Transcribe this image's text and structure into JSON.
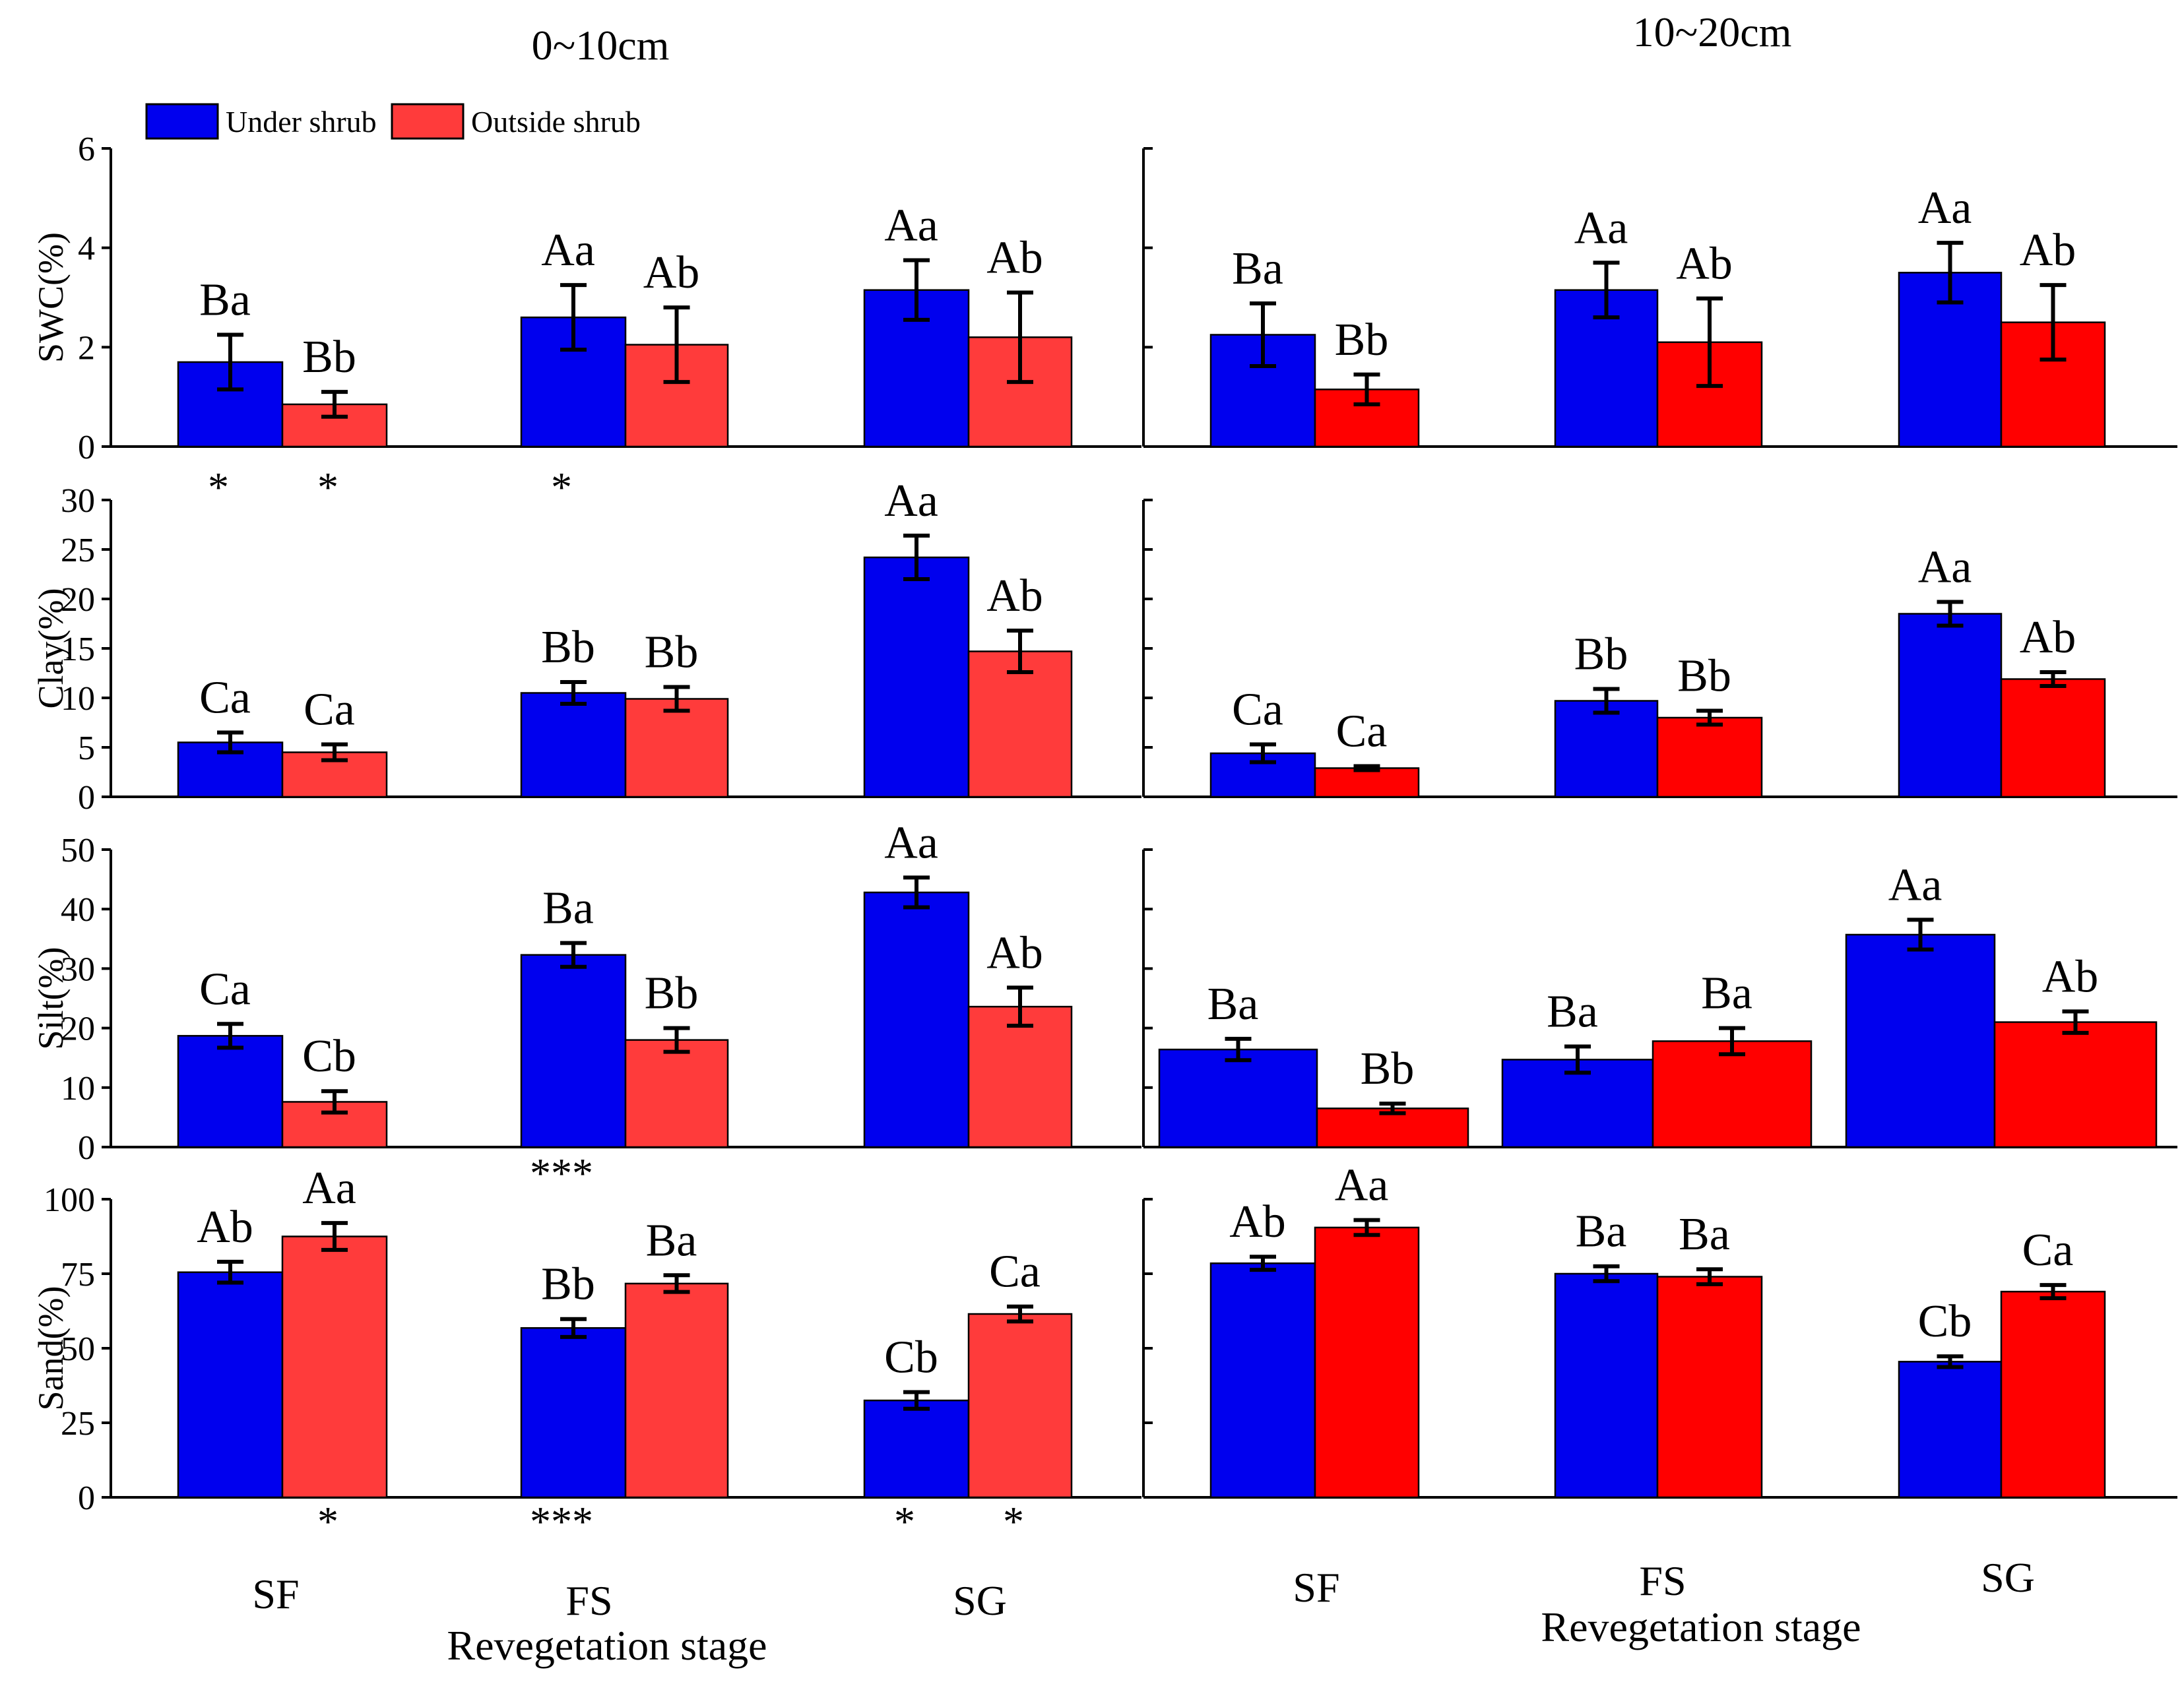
{
  "colors": {
    "under_left": "#0000ee",
    "outside_left": "#ff3b3b",
    "under_right": "#0000ee",
    "outside_right": "#ff0000"
  },
  "titles": {
    "left": "0~10cm",
    "right": "10~20cm"
  },
  "legend": {
    "under": "Under shrub",
    "outside": "Outside shrub"
  },
  "x_axis": {
    "label": "Revegetation stage",
    "categories": [
      "SF",
      "FS",
      "SG"
    ]
  },
  "chart_data": [
    {
      "type": "bar",
      "title": "0~10cm",
      "ylabel": "SWC(%)",
      "ylim": [
        0,
        6
      ],
      "yticks": [
        "0",
        "2",
        "4",
        "6"
      ],
      "categories": [
        "SF",
        "FS",
        "SG"
      ],
      "series": [
        {
          "name": "Under shrub",
          "values": [
            1.7,
            2.6,
            3.15
          ],
          "errors": [
            0.55,
            0.65,
            0.6
          ],
          "letters": [
            "Ba",
            "Aa",
            "Aa"
          ]
        },
        {
          "name": "Outside shrub",
          "values": [
            0.85,
            2.05,
            2.2
          ],
          "errors": [
            0.25,
            0.75,
            0.9
          ],
          "letters": [
            "Bb",
            "Ab",
            "Ab"
          ]
        }
      ],
      "significance": [
        {
          "category": "SF",
          "series": "Under shrub",
          "mark": "*"
        },
        {
          "category": "SF",
          "series": "Outside shrub",
          "mark": "*"
        },
        {
          "category": "FS",
          "series": "Under shrub",
          "mark": "*"
        }
      ]
    },
    {
      "type": "bar",
      "title": "10~20cm",
      "ylabel": "SWC(%)",
      "ylim": [
        0,
        6
      ],
      "yticks": [
        "0",
        "2",
        "4",
        "6"
      ],
      "categories": [
        "SF",
        "FS",
        "SG"
      ],
      "series": [
        {
          "name": "Under shrub",
          "values": [
            2.25,
            3.15,
            3.5
          ],
          "errors": [
            0.63,
            0.55,
            0.6
          ],
          "letters": [
            "Ba",
            "Aa",
            "Aa"
          ]
        },
        {
          "name": "Outside shrub",
          "values": [
            1.15,
            2.1,
            2.5
          ],
          "errors": [
            0.3,
            0.88,
            0.75
          ],
          "letters": [
            "Bb",
            "Ab",
            "Ab"
          ]
        }
      ],
      "significance": []
    },
    {
      "type": "bar",
      "title": "0~10cm",
      "ylabel": "Clay(%)",
      "ylim": [
        0,
        30
      ],
      "yticks": [
        "0",
        "5",
        "10",
        "15",
        "20",
        "25",
        "30"
      ],
      "categories": [
        "SF",
        "FS",
        "SG"
      ],
      "series": [
        {
          "name": "Under shrub",
          "values": [
            5.5,
            10.5,
            24.2
          ],
          "errors": [
            1.0,
            1.1,
            2.2
          ],
          "letters": [
            "Ca",
            "Bb",
            "Aa"
          ]
        },
        {
          "name": "Outside shrub",
          "values": [
            4.5,
            9.9,
            14.7
          ],
          "errors": [
            0.8,
            1.2,
            2.1
          ],
          "letters": [
            "Ca",
            "Bb",
            "Ab"
          ]
        }
      ],
      "significance": []
    },
    {
      "type": "bar",
      "title": "10~20cm",
      "ylabel": "Clay(%)",
      "ylim": [
        0,
        30
      ],
      "yticks": [
        "0",
        "5",
        "10",
        "15",
        "20",
        "25",
        "30"
      ],
      "categories": [
        "SF",
        "FS",
        "SG"
      ],
      "series": [
        {
          "name": "Under shrub",
          "values": [
            4.4,
            9.7,
            18.5
          ],
          "errors": [
            0.9,
            1.2,
            1.2
          ],
          "letters": [
            "Ca",
            "Bb",
            "Aa"
          ]
        },
        {
          "name": "Outside shrub",
          "values": [
            2.9,
            8.0,
            11.9
          ],
          "errors": [
            0.2,
            0.7,
            0.7
          ],
          "letters": [
            "Ca",
            "Bb",
            "Ab"
          ]
        }
      ],
      "significance": []
    },
    {
      "type": "bar",
      "title": "0~10cm",
      "ylabel": "Silt(%)",
      "ylim": [
        0,
        50
      ],
      "yticks": [
        "0",
        "10",
        "20",
        "30",
        "40",
        "50"
      ],
      "categories": [
        "SF",
        "FS",
        "SG"
      ],
      "series": [
        {
          "name": "Under shrub",
          "values": [
            18.7,
            32.3,
            42.8
          ],
          "errors": [
            2.0,
            2.0,
            2.5
          ],
          "letters": [
            "Ca",
            "Ba",
            "Aa"
          ]
        },
        {
          "name": "Outside shrub",
          "values": [
            7.6,
            18.0,
            23.6
          ],
          "errors": [
            1.8,
            2.0,
            3.2
          ],
          "letters": [
            "Cb",
            "Bb",
            "Ab"
          ]
        }
      ],
      "significance": [
        {
          "category": "FS",
          "series": "Under shrub",
          "mark": "***"
        }
      ]
    },
    {
      "type": "bar",
      "title": "10~20cm",
      "ylabel": "Silt(%)",
      "ylim": [
        0,
        50
      ],
      "yticks": [
        "0",
        "10",
        "20",
        "30",
        "40",
        "50"
      ],
      "categories": [
        "SF",
        "FS",
        "SG"
      ],
      "series": [
        {
          "name": "Under shrub",
          "values": [
            16.4,
            14.7,
            35.7
          ],
          "errors": [
            1.8,
            2.2,
            2.5
          ],
          "letters": [
            "Ba",
            "Ba",
            "Aa"
          ]
        },
        {
          "name": "Outside shrub",
          "values": [
            6.5,
            17.8,
            21.0
          ],
          "errors": [
            0.8,
            2.2,
            1.8
          ],
          "letters": [
            "Bb",
            "Ba",
            "Ab"
          ]
        }
      ],
      "significance": []
    },
    {
      "type": "bar",
      "title": "0~10cm",
      "ylabel": "Sand(%)",
      "ylim": [
        0,
        100
      ],
      "yticks": [
        "0",
        "25",
        "50",
        "75",
        "100"
      ],
      "categories": [
        "SF",
        "FS",
        "SG"
      ],
      "series": [
        {
          "name": "Under shrub",
          "values": [
            75.5,
            56.8,
            32.5
          ],
          "errors": [
            3.5,
            3.0,
            2.8
          ],
          "letters": [
            "Ab",
            "Bb",
            "Cb"
          ]
        },
        {
          "name": "Outside shrub",
          "values": [
            87.5,
            71.7,
            61.5
          ],
          "errors": [
            4.5,
            2.8,
            2.5
          ],
          "letters": [
            "Aa",
            "Ba",
            "Ca"
          ]
        }
      ],
      "significance": [
        {
          "category": "SF",
          "series": "Outside shrub",
          "mark": "*"
        },
        {
          "category": "FS",
          "series": "Under shrub",
          "mark": "***"
        },
        {
          "category": "SG",
          "series": "Under shrub",
          "mark": "*"
        },
        {
          "category": "SG",
          "series": "Outside shrub",
          "mark": "*"
        }
      ]
    },
    {
      "type": "bar",
      "title": "10~20cm",
      "ylabel": "Sand(%)",
      "ylim": [
        0,
        100
      ],
      "yticks": [
        "0",
        "25",
        "50",
        "75",
        "100"
      ],
      "categories": [
        "SF",
        "FS",
        "SG"
      ],
      "series": [
        {
          "name": "Under shrub",
          "values": [
            78.5,
            75.0,
            45.5
          ],
          "errors": [
            2.2,
            2.5,
            1.8
          ],
          "letters": [
            "Ab",
            "Ba",
            "Cb"
          ]
        },
        {
          "name": "Outside shrub",
          "values": [
            90.5,
            74.0,
            69.0
          ],
          "errors": [
            2.5,
            2.5,
            2.2
          ],
          "letters": [
            "Aa",
            "Ba",
            "Ca"
          ]
        }
      ],
      "significance": []
    }
  ]
}
